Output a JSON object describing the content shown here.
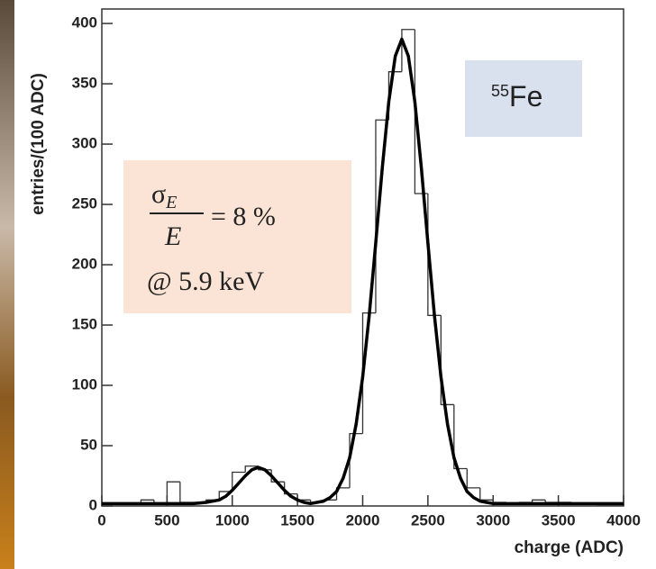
{
  "chart_data": {
    "type": "histogram",
    "x_label": "charge (ADC)",
    "y_label": "entries/(100 ADC)",
    "bins": [
      0,
      100,
      200,
      300,
      400,
      500,
      600,
      700,
      800,
      900,
      1000,
      1100,
      1200,
      1300,
      1400,
      1500,
      1600,
      1700,
      1800,
      1900,
      2000,
      2100,
      2200,
      2300,
      2400,
      2500,
      2600,
      2700,
      2800,
      2900,
      3000,
      3100,
      3200,
      3300,
      3400,
      3500,
      3600,
      3700,
      3800,
      3900,
      4000
    ],
    "values": [
      2,
      2,
      2,
      5,
      2,
      20,
      3,
      3,
      5,
      12,
      28,
      33,
      30,
      20,
      10,
      5,
      3,
      5,
      15,
      60,
      160,
      320,
      360,
      395,
      259,
      158,
      84,
      31,
      15,
      5,
      3,
      2,
      3,
      5,
      3,
      3,
      2,
      2,
      1,
      1
    ],
    "color": "#333333",
    "fit": {
      "color": "#000000",
      "x": [
        0,
        100,
        200,
        300,
        400,
        500,
        600,
        700,
        800,
        900,
        950,
        1000,
        1050,
        1100,
        1150,
        1200,
        1250,
        1300,
        1350,
        1400,
        1450,
        1500,
        1550,
        1600,
        1650,
        1700,
        1750,
        1800,
        1850,
        1900,
        1950,
        2000,
        2050,
        2100,
        2150,
        2200,
        2250,
        2300,
        2350,
        2400,
        2450,
        2500,
        2550,
        2600,
        2650,
        2700,
        2750,
        2800,
        2850,
        2900,
        2950,
        3000,
        3500,
        4000
      ],
      "values": [
        2,
        2,
        2,
        2,
        2,
        2,
        2,
        2,
        3,
        5,
        8,
        13,
        19,
        25,
        30,
        32,
        30,
        25,
        19,
        13,
        8,
        5,
        3,
        2,
        3,
        4,
        7,
        12,
        23,
        40,
        68,
        107,
        158,
        218,
        280,
        335,
        373,
        387,
        373,
        335,
        280,
        218,
        158,
        107,
        68,
        40,
        23,
        12,
        7,
        4,
        3,
        2,
        2,
        2
      ]
    },
    "xlim": [
      0,
      4000
    ],
    "xticks": [
      0,
      500,
      1000,
      1500,
      2000,
      2500,
      3000,
      3500,
      4000
    ],
    "ylim": [
      0,
      412
    ],
    "yticks": [
      0,
      50,
      100,
      150,
      200,
      250,
      300,
      350,
      400
    ],
    "isotope_label": {
      "superscript": "55",
      "text": "Fe"
    },
    "resolution_formula": {
      "numerator": "σ",
      "numerator_subscript": "E",
      "denominator": "E",
      "rhs": "= 8 %"
    },
    "resolution_note": "@ 5.9 keV"
  }
}
